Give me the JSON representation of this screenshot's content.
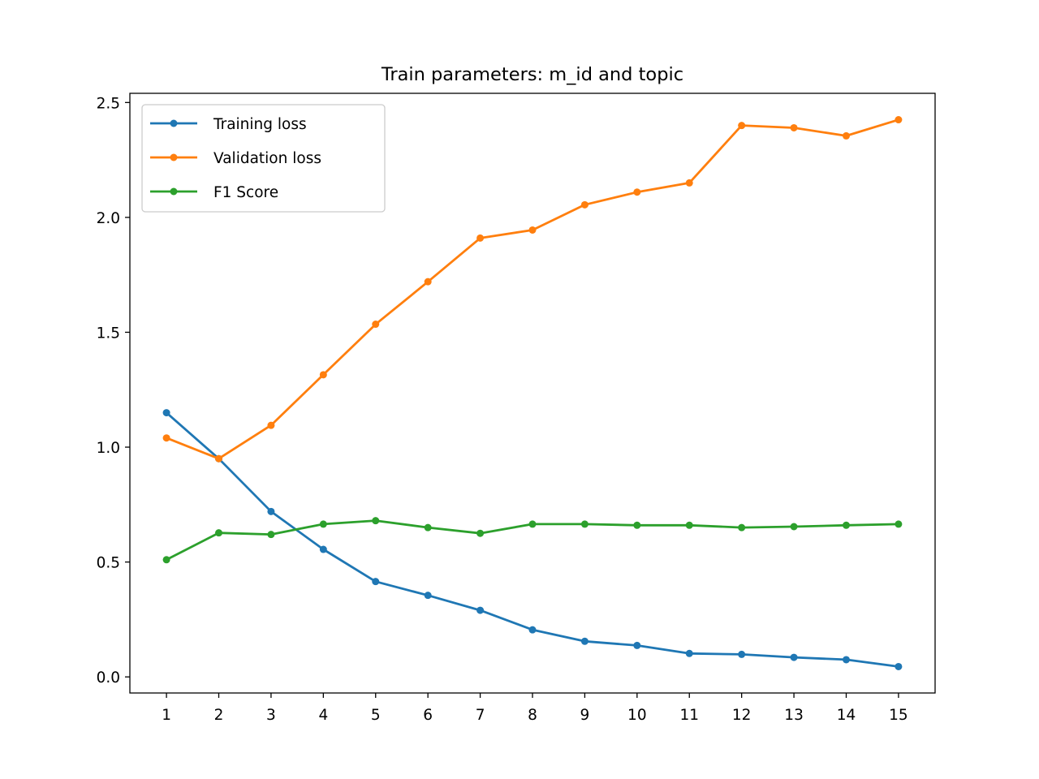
{
  "chart_data": {
    "type": "line",
    "title": "Train parameters: m_id and topic",
    "xlabel": "",
    "ylabel": "",
    "x": [
      1,
      2,
      3,
      4,
      5,
      6,
      7,
      8,
      9,
      10,
      11,
      12,
      13,
      14,
      15
    ],
    "xlim": [
      0.3,
      15.7
    ],
    "ylim": [
      -0.07,
      2.54
    ],
    "yticks": [
      0.0,
      0.5,
      1.0,
      1.5,
      2.0,
      2.5
    ],
    "ytick_labels": [
      "0.0",
      "0.5",
      "1.0",
      "1.5",
      "2.0",
      "2.5"
    ],
    "grid": false,
    "legend_position": "upper-left",
    "series": [
      {
        "name": "Training loss",
        "color": "#1f77b4",
        "values": [
          1.15,
          0.95,
          0.72,
          0.555,
          0.415,
          0.355,
          0.29,
          0.205,
          0.155,
          0.137,
          0.102,
          0.098,
          0.085,
          0.075,
          0.045
        ]
      },
      {
        "name": "Validation loss",
        "color": "#ff7f0e",
        "values": [
          1.04,
          0.95,
          1.095,
          1.315,
          1.535,
          1.72,
          1.91,
          1.945,
          2.055,
          2.11,
          2.15,
          2.4,
          2.39,
          2.355,
          2.425
        ]
      },
      {
        "name": "F1 Score",
        "color": "#2ca02c",
        "values": [
          0.51,
          0.627,
          0.62,
          0.665,
          0.68,
          0.65,
          0.625,
          0.665,
          0.665,
          0.66,
          0.66,
          0.65,
          0.654,
          0.66,
          0.665
        ]
      }
    ]
  }
}
